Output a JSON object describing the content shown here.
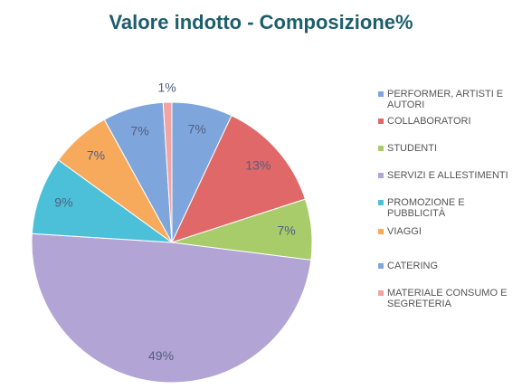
{
  "chart_data": {
    "type": "pie",
    "title": "Valore indotto - Composizione%",
    "categories": [
      "PERFORMER, ARTISTI E AUTORI",
      "COLLABORATORI",
      "STUDENTI",
      "SERVIZI E ALLESTIMENTI",
      "PROMOZIONE E PUBBLICITÀ",
      "VIAGGI",
      "CATERING",
      "MATERIALE CONSUMO E SEGRETERIA"
    ],
    "values": [
      7,
      13,
      7,
      49,
      9,
      7,
      7,
      1
    ],
    "value_labels": [
      "7%",
      "13%",
      "7%",
      "49%",
      "9%",
      "7%",
      "7%",
      "1%"
    ],
    "colors": [
      "#7fa6dc",
      "#e06868",
      "#a8cc6a",
      "#b3a4d6",
      "#4cc0d8",
      "#f7aa5c",
      "#7fa6dc",
      "#f2a3a3"
    ],
    "legend": "right"
  }
}
